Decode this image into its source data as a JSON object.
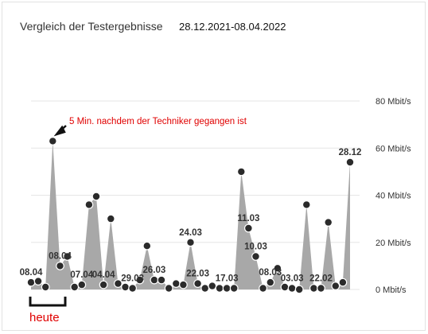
{
  "header": {
    "title": "Vergleich der Testergebnisse",
    "date_range": "28.12.2021-08.04.2022"
  },
  "annotation": {
    "text": "5 Min. nachdem der Techniker gegangen ist",
    "color": "#e00000"
  },
  "today_marker": {
    "label": "heute",
    "color": "#e00000"
  },
  "colors": {
    "area": "#a8a8a8",
    "marker": "#2b2b2b",
    "grid": "#e6e6e6"
  },
  "chart_data": {
    "type": "area",
    "title": "",
    "ylabel": "",
    "ylim": [
      0,
      80
    ],
    "yticks": [
      "0 Mbit/s",
      "20 Mbit/s",
      "40 Mbit/s",
      "60 Mbit/s",
      "80 Mbit/s"
    ],
    "grid": true,
    "x_order": "newest-first",
    "values": [
      3,
      3.5,
      1,
      63,
      10,
      14,
      1,
      2,
      36,
      39.5,
      2,
      30,
      2.5,
      1,
      0.5,
      4,
      18.5,
      4,
      4,
      0.5,
      2.5,
      2,
      20,
      2.5,
      0.5,
      1.5,
      0.5,
      0.5,
      0.5,
      50,
      26,
      14,
      0.5,
      3,
      9,
      1,
      0.5,
      0,
      36,
      0.5,
      0.5,
      28.5,
      1.5,
      3,
      54
    ],
    "data_labels": [
      {
        "index": 0,
        "text": "08.04"
      },
      {
        "index": 4,
        "text": "08.04"
      },
      {
        "index": 7,
        "text": "07.04"
      },
      {
        "index": 10,
        "text": "04.04"
      },
      {
        "index": 14,
        "text": "29.03"
      },
      {
        "index": 17,
        "text": "26.03"
      },
      {
        "index": 22,
        "text": "24.03"
      },
      {
        "index": 23,
        "text": "22.03"
      },
      {
        "index": 27,
        "text": "17.03"
      },
      {
        "index": 30,
        "text": "11.03"
      },
      {
        "index": 31,
        "text": "10.03"
      },
      {
        "index": 33,
        "text": "08.03"
      },
      {
        "index": 36,
        "text": "03.03"
      },
      {
        "index": 40,
        "text": "22.02"
      },
      {
        "index": 44,
        "text": "28.12"
      }
    ]
  }
}
